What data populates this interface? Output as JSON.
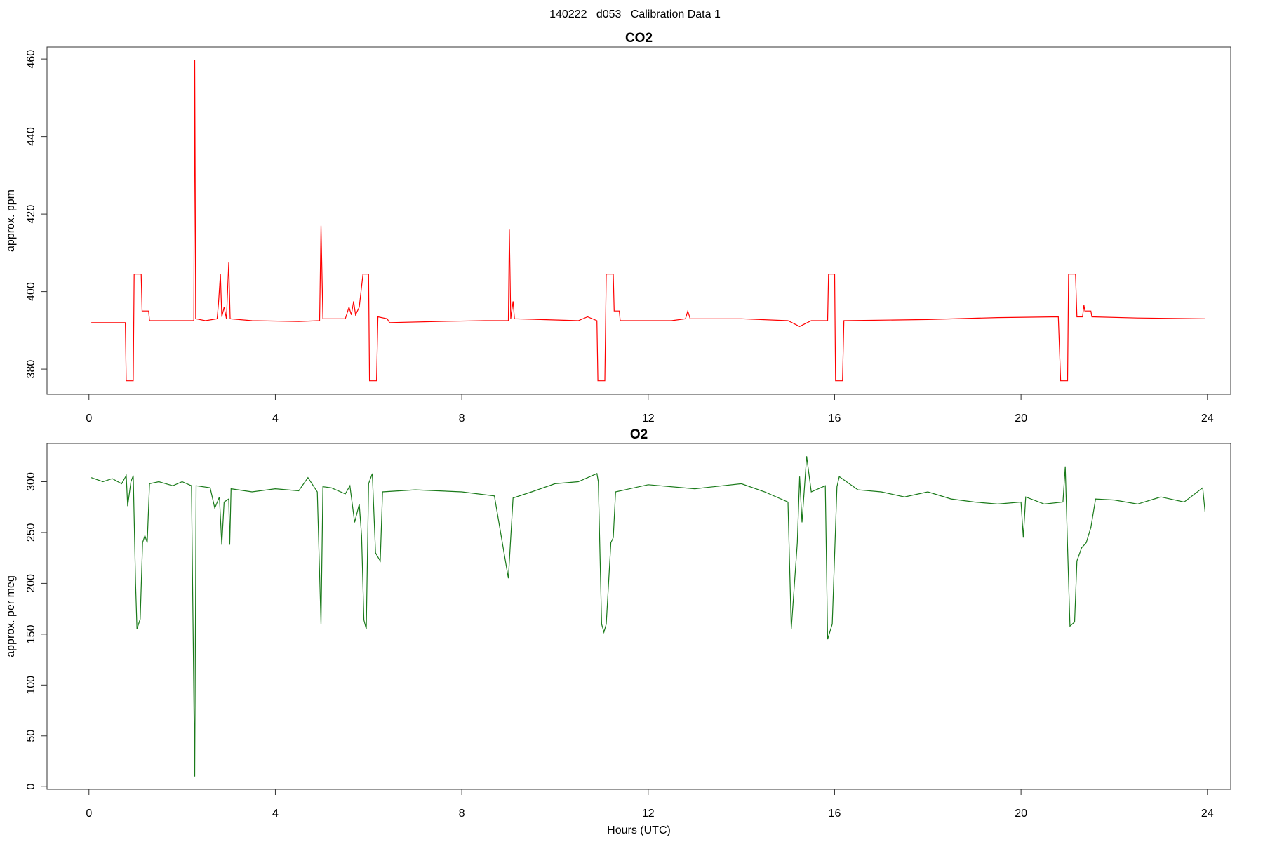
{
  "title": "140222   d053   Calibration Data 1",
  "chart_data": [
    {
      "type": "line",
      "title": "CO2",
      "ylabel": "approx. ppm",
      "color": "#ff0000",
      "xlim": [
        -0.9,
        24.5
      ],
      "xticks": [
        0,
        4,
        8,
        12,
        16,
        20,
        24
      ],
      "ylim": [
        373.5,
        463.1
      ],
      "yticks": [
        380,
        400,
        420,
        440,
        460
      ],
      "x": [
        0.05,
        0.78,
        0.8,
        0.95,
        0.97,
        1.12,
        1.14,
        1.28,
        1.3,
        2.25,
        2.27,
        2.29,
        2.5,
        2.75,
        2.78,
        2.82,
        2.85,
        2.9,
        2.95,
        3.0,
        3.03,
        3.5,
        4.5,
        4.95,
        4.98,
        5.02,
        5.5,
        5.58,
        5.63,
        5.68,
        5.72,
        5.8,
        5.88,
        6.0,
        6.02,
        6.17,
        6.2,
        6.4,
        6.45,
        7.5,
        8.5,
        9.0,
        9.02,
        9.05,
        9.1,
        9.13,
        10.5,
        10.7,
        10.9,
        10.92,
        11.07,
        11.1,
        11.25,
        11.27,
        11.38,
        11.4,
        12.5,
        12.8,
        12.85,
        12.9,
        14.0,
        15.0,
        15.25,
        15.5,
        15.85,
        15.87,
        16.0,
        16.02,
        16.17,
        16.2,
        18,
        19.5,
        20.8,
        20.85,
        21.0,
        21.02,
        21.17,
        21.2,
        21.32,
        21.35,
        21.37,
        21.5,
        21.52,
        22.5,
        23.95
      ],
      "values": [
        392,
        392,
        377,
        377,
        404.5,
        404.5,
        395,
        395,
        392.5,
        392.5,
        459.8,
        393,
        392.5,
        393,
        397,
        404.5,
        393.5,
        396,
        393,
        407.5,
        393,
        392.5,
        392.3,
        392.5,
        417,
        393,
        393,
        396,
        394,
        397.5,
        394,
        396,
        404.5,
        404.5,
        377,
        377,
        393.5,
        393,
        392,
        392.3,
        392.5,
        392.5,
        416,
        393,
        397.5,
        393,
        392.5,
        393.5,
        392.5,
        377,
        377,
        404.5,
        404.5,
        395,
        395,
        392.5,
        392.5,
        393,
        395,
        393,
        393,
        392.5,
        391,
        392.5,
        392.5,
        404.5,
        404.5,
        377,
        377,
        392.5,
        392.8,
        393.3,
        393.5,
        377,
        377,
        404.5,
        404.5,
        393.5,
        393.5,
        396.5,
        395,
        395,
        393.5,
        393.2,
        393
      ]
    },
    {
      "type": "line",
      "title": "O2",
      "ylabel": "approx. per meg",
      "xlabel": "Hours (UTC)",
      "color": "#1a7a1a",
      "xlim": [
        -0.9,
        24.5
      ],
      "xticks": [
        0,
        4,
        8,
        12,
        16,
        20,
        24
      ],
      "ylim": [
        -2.6,
        337.6
      ],
      "yticks": [
        0,
        50,
        100,
        150,
        200,
        250,
        300
      ],
      "x": [
        0.05,
        0.3,
        0.5,
        0.7,
        0.8,
        0.83,
        0.9,
        0.95,
        1.0,
        1.03,
        1.1,
        1.15,
        1.2,
        1.25,
        1.3,
        1.5,
        1.8,
        2.0,
        2.2,
        2.27,
        2.3,
        2.6,
        2.7,
        2.8,
        2.85,
        2.9,
        3.0,
        3.02,
        3.05,
        3.5,
        4.0,
        4.5,
        4.7,
        4.9,
        4.98,
        5.02,
        5.2,
        5.5,
        5.6,
        5.7,
        5.8,
        5.85,
        5.9,
        5.95,
        6.0,
        6.08,
        6.15,
        6.25,
        6.3,
        7,
        8,
        8.7,
        9.0,
        9.1,
        9.5,
        10,
        10.5,
        10.9,
        10.93,
        11.0,
        11.05,
        11.1,
        11.2,
        11.25,
        11.3,
        12,
        13,
        14,
        14.5,
        15.0,
        15.07,
        15.2,
        15.25,
        15.3,
        15.4,
        15.5,
        15.8,
        15.85,
        15.95,
        16.05,
        16.1,
        16.5,
        17,
        17.5,
        18,
        18.5,
        19,
        19.5,
        20,
        20.05,
        20.1,
        20.5,
        20.9,
        20.95,
        21.0,
        21.05,
        21.15,
        21.2,
        21.3,
        21.4,
        21.5,
        21.6,
        22,
        22.5,
        23,
        23.5,
        23.9,
        23.95
      ],
      "values": [
        304,
        300,
        303,
        298,
        306,
        276,
        300,
        306,
        200,
        155,
        165,
        240,
        247,
        240,
        298,
        300,
        296,
        300,
        296,
        10,
        296,
        294,
        274,
        285,
        238,
        280,
        283,
        238,
        293,
        290,
        293,
        291,
        304,
        290,
        160,
        295,
        294,
        288,
        296,
        260,
        278,
        247,
        164,
        155,
        298,
        308,
        230,
        222,
        290,
        292,
        290,
        286,
        205,
        284,
        290,
        298,
        300,
        308,
        300,
        160,
        152,
        160,
        240,
        245,
        290,
        297,
        293,
        298,
        290,
        280,
        155,
        240,
        305,
        260,
        325,
        290,
        296,
        145,
        160,
        295,
        305,
        292,
        290,
        285,
        290,
        283,
        280,
        278,
        280,
        245,
        285,
        278,
        280,
        315,
        235,
        158,
        162,
        222,
        235,
        240,
        255,
        283,
        282,
        278,
        285,
        280,
        294,
        270
      ]
    }
  ]
}
